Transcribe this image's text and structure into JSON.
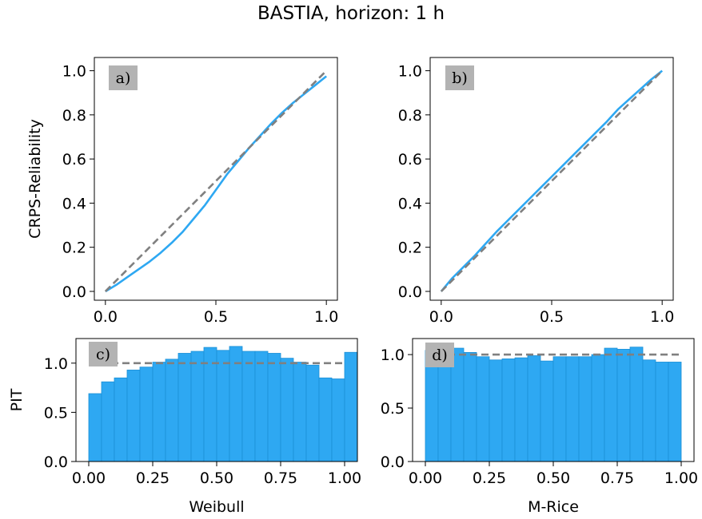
{
  "figure": {
    "title": "BASTIA, horizon: 1 h"
  },
  "colors": {
    "curve": "#2ea8f2",
    "bar_fill": "#2ea8f2",
    "bar_edge": "#1b8fd6",
    "reference": "#808080",
    "label_box": "#b3b3b3"
  },
  "chart_data": [
    {
      "id": "a",
      "panel_label": "a)",
      "type": "line",
      "ylabel": "CRPS-Reliability",
      "xlabel": "",
      "xlim": [
        -0.05,
        1.05
      ],
      "ylim": [
        -0.04,
        1.06
      ],
      "xticks": [
        0.0,
        0.5,
        1.0
      ],
      "xtick_labels": [
        "0.0",
        "0.5",
        "1.0"
      ],
      "yticks": [
        0.0,
        0.2,
        0.4,
        0.6,
        0.8,
        1.0
      ],
      "ytick_labels": [
        "0.0",
        "0.2",
        "0.4",
        "0.6",
        "0.8",
        "1.0"
      ],
      "reference": {
        "x": [
          0,
          1
        ],
        "y": [
          0,
          1
        ],
        "style": "dashed"
      },
      "series": [
        {
          "x": [
            0.0,
            0.05,
            0.1,
            0.15,
            0.2,
            0.25,
            0.3,
            0.35,
            0.4,
            0.45,
            0.5,
            0.55,
            0.6,
            0.65,
            0.7,
            0.75,
            0.8,
            0.85,
            0.9,
            0.95,
            1.0
          ],
          "y": [
            0.0,
            0.03,
            0.065,
            0.1,
            0.135,
            0.175,
            0.22,
            0.27,
            0.33,
            0.39,
            0.46,
            0.53,
            0.59,
            0.65,
            0.705,
            0.76,
            0.81,
            0.855,
            0.895,
            0.935,
            0.975
          ]
        }
      ]
    },
    {
      "id": "b",
      "panel_label": "b)",
      "type": "line",
      "ylabel": "",
      "xlabel": "",
      "xlim": [
        -0.05,
        1.05
      ],
      "ylim": [
        -0.04,
        1.06
      ],
      "xticks": [
        0.0,
        0.5,
        1.0
      ],
      "xtick_labels": [
        "0.0",
        "0.5",
        "1.0"
      ],
      "yticks": [
        0.0,
        0.2,
        0.4,
        0.6,
        0.8,
        1.0
      ],
      "ytick_labels": [
        "0.0",
        "0.2",
        "0.4",
        "0.6",
        "0.8",
        "1.0"
      ],
      "reference": {
        "x": [
          0,
          1
        ],
        "y": [
          0,
          1
        ],
        "style": "dashed"
      },
      "series": [
        {
          "x": [
            0.0,
            0.05,
            0.1,
            0.15,
            0.2,
            0.25,
            0.3,
            0.35,
            0.4,
            0.45,
            0.5,
            0.55,
            0.6,
            0.65,
            0.7,
            0.75,
            0.8,
            0.85,
            0.9,
            0.95,
            1.0
          ],
          "y": [
            0.0,
            0.06,
            0.11,
            0.16,
            0.215,
            0.27,
            0.32,
            0.37,
            0.42,
            0.47,
            0.52,
            0.57,
            0.62,
            0.67,
            0.72,
            0.77,
            0.825,
            0.87,
            0.915,
            0.96,
            1.0
          ]
        }
      ]
    },
    {
      "id": "c",
      "panel_label": "c)",
      "type": "bar",
      "ylabel": "PIT",
      "xlabel": "Weibull",
      "xlim": [
        -0.05,
        1.05
      ],
      "ylim": [
        0,
        1.25
      ],
      "xticks": [
        0.0,
        0.25,
        0.5,
        0.75,
        1.0
      ],
      "xtick_labels": [
        "0.00",
        "0.25",
        "0.50",
        "0.75",
        "1.00"
      ],
      "yticks": [
        0.0,
        0.5,
        1.0
      ],
      "ytick_labels": [
        "0.0",
        "0.5",
        "1.0"
      ],
      "reference": {
        "y": 1.0,
        "style": "dashed"
      },
      "bin_edges_start": 0.0,
      "bin_width": 0.05,
      "values": [
        0.69,
        0.81,
        0.85,
        0.93,
        0.96,
        1.01,
        1.04,
        1.1,
        1.12,
        1.16,
        1.13,
        1.17,
        1.12,
        1.12,
        1.1,
        1.05,
        1.01,
        0.98,
        0.85,
        0.84,
        1.11
      ]
    },
    {
      "id": "d",
      "panel_label": "d)",
      "type": "bar",
      "ylabel": "",
      "xlabel": "M-Rice",
      "xlim": [
        -0.05,
        1.05
      ],
      "ylim": [
        0,
        1.15
      ],
      "xticks": [
        0.0,
        0.25,
        0.5,
        0.75,
        1.0
      ],
      "xtick_labels": [
        "0.00",
        "0.25",
        "0.50",
        "0.75",
        "1.00"
      ],
      "yticks": [
        0.0,
        0.5,
        1.0
      ],
      "ytick_labels": [
        "0.0",
        "0.5",
        "1.0"
      ],
      "reference": {
        "y": 1.0,
        "style": "dashed"
      },
      "bin_edges_start": 0.0,
      "bin_width": 0.05,
      "values": [
        1.04,
        1.03,
        1.06,
        1.02,
        0.98,
        0.95,
        0.96,
        0.97,
        0.99,
        0.94,
        0.98,
        0.98,
        0.98,
        1.0,
        1.06,
        1.05,
        1.07,
        0.95,
        0.93,
        0.93
      ]
    }
  ]
}
